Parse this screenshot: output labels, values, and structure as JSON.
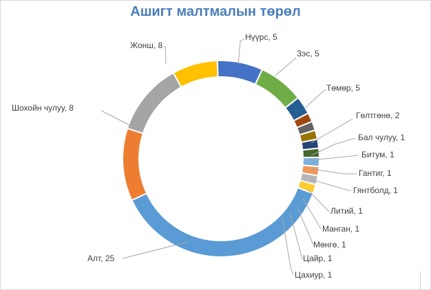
{
  "chart_data": {
    "type": "pie",
    "variant": "doughnut",
    "title": "Ашигт малтмалын төрөл",
    "legend": "none",
    "categories": [
      "Нүүрс",
      "Зэс",
      "Төмөр",
      "Гөлтгөнө",
      "Бал чулуу",
      "Битум",
      "Гантиг",
      "Гянтболд",
      "Литий",
      "Манган",
      "Мөнгө",
      "Цайр",
      "Цахиур",
      "Алт",
      "Шохойн чулуу",
      "Жонш"
    ],
    "values": [
      5,
      5,
      5,
      2,
      1,
      1,
      1,
      1,
      1,
      1,
      1,
      1,
      1,
      25,
      8,
      8
    ],
    "labels": [
      "Нүүрс, 5",
      "Зэс, 5",
      "Төмөр, 5",
      "Гөлтгөнө, 2",
      "Бал чулуу, 1",
      "Битум, 1",
      "Гантиг, 1",
      "Гянтболд, 1",
      "Литий, 1",
      "Манган, 1",
      "Мөнгө, 1",
      "Цайр, 1",
      "Цахиур, 1",
      "Алт, 25",
      "Шохойн чулуу, 8",
      "Жонш, 8"
    ],
    "colors": [
      "#ffc000",
      "#4472c4",
      "#70ad47",
      "#255e91",
      "#9e480e",
      "#636363",
      "#997300",
      "#264478",
      "#43682b",
      "#7cafdd",
      "#f1975a",
      "#b7b7b7",
      "#ffcd33",
      "#5b9bd5",
      "#ed7d31",
      "#a5a5a5"
    ]
  }
}
